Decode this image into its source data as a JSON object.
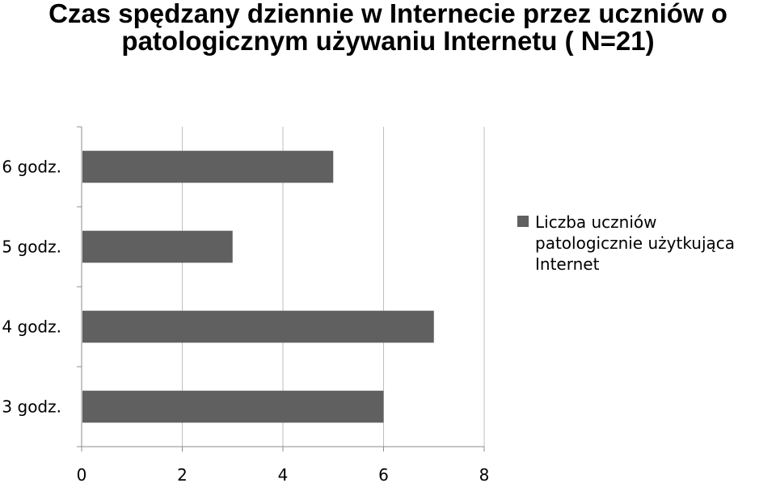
{
  "title": {
    "line1": "Czas spędzany dziennie w Internecie przez uczniów o",
    "line2": "patologicznym używaniu Internetu ( N=21)"
  },
  "chart_data": {
    "type": "bar",
    "orientation": "horizontal",
    "categories": [
      "6 godz.",
      "5 godz.",
      "4 godz.",
      "3 godz."
    ],
    "series": [
      {
        "name": "Liczba uczniów patologicznie użytkująca Internet",
        "values": [
          5,
          3,
          7,
          6
        ]
      }
    ],
    "xlim": [
      0,
      8
    ],
    "xticks": [
      "0",
      "2",
      "4",
      "6",
      "8"
    ],
    "grid": true,
    "legend_position": "right",
    "colors": {
      "bar": "#606060",
      "grid": "#bfbfbf",
      "axis": "#8c8c8c"
    }
  }
}
